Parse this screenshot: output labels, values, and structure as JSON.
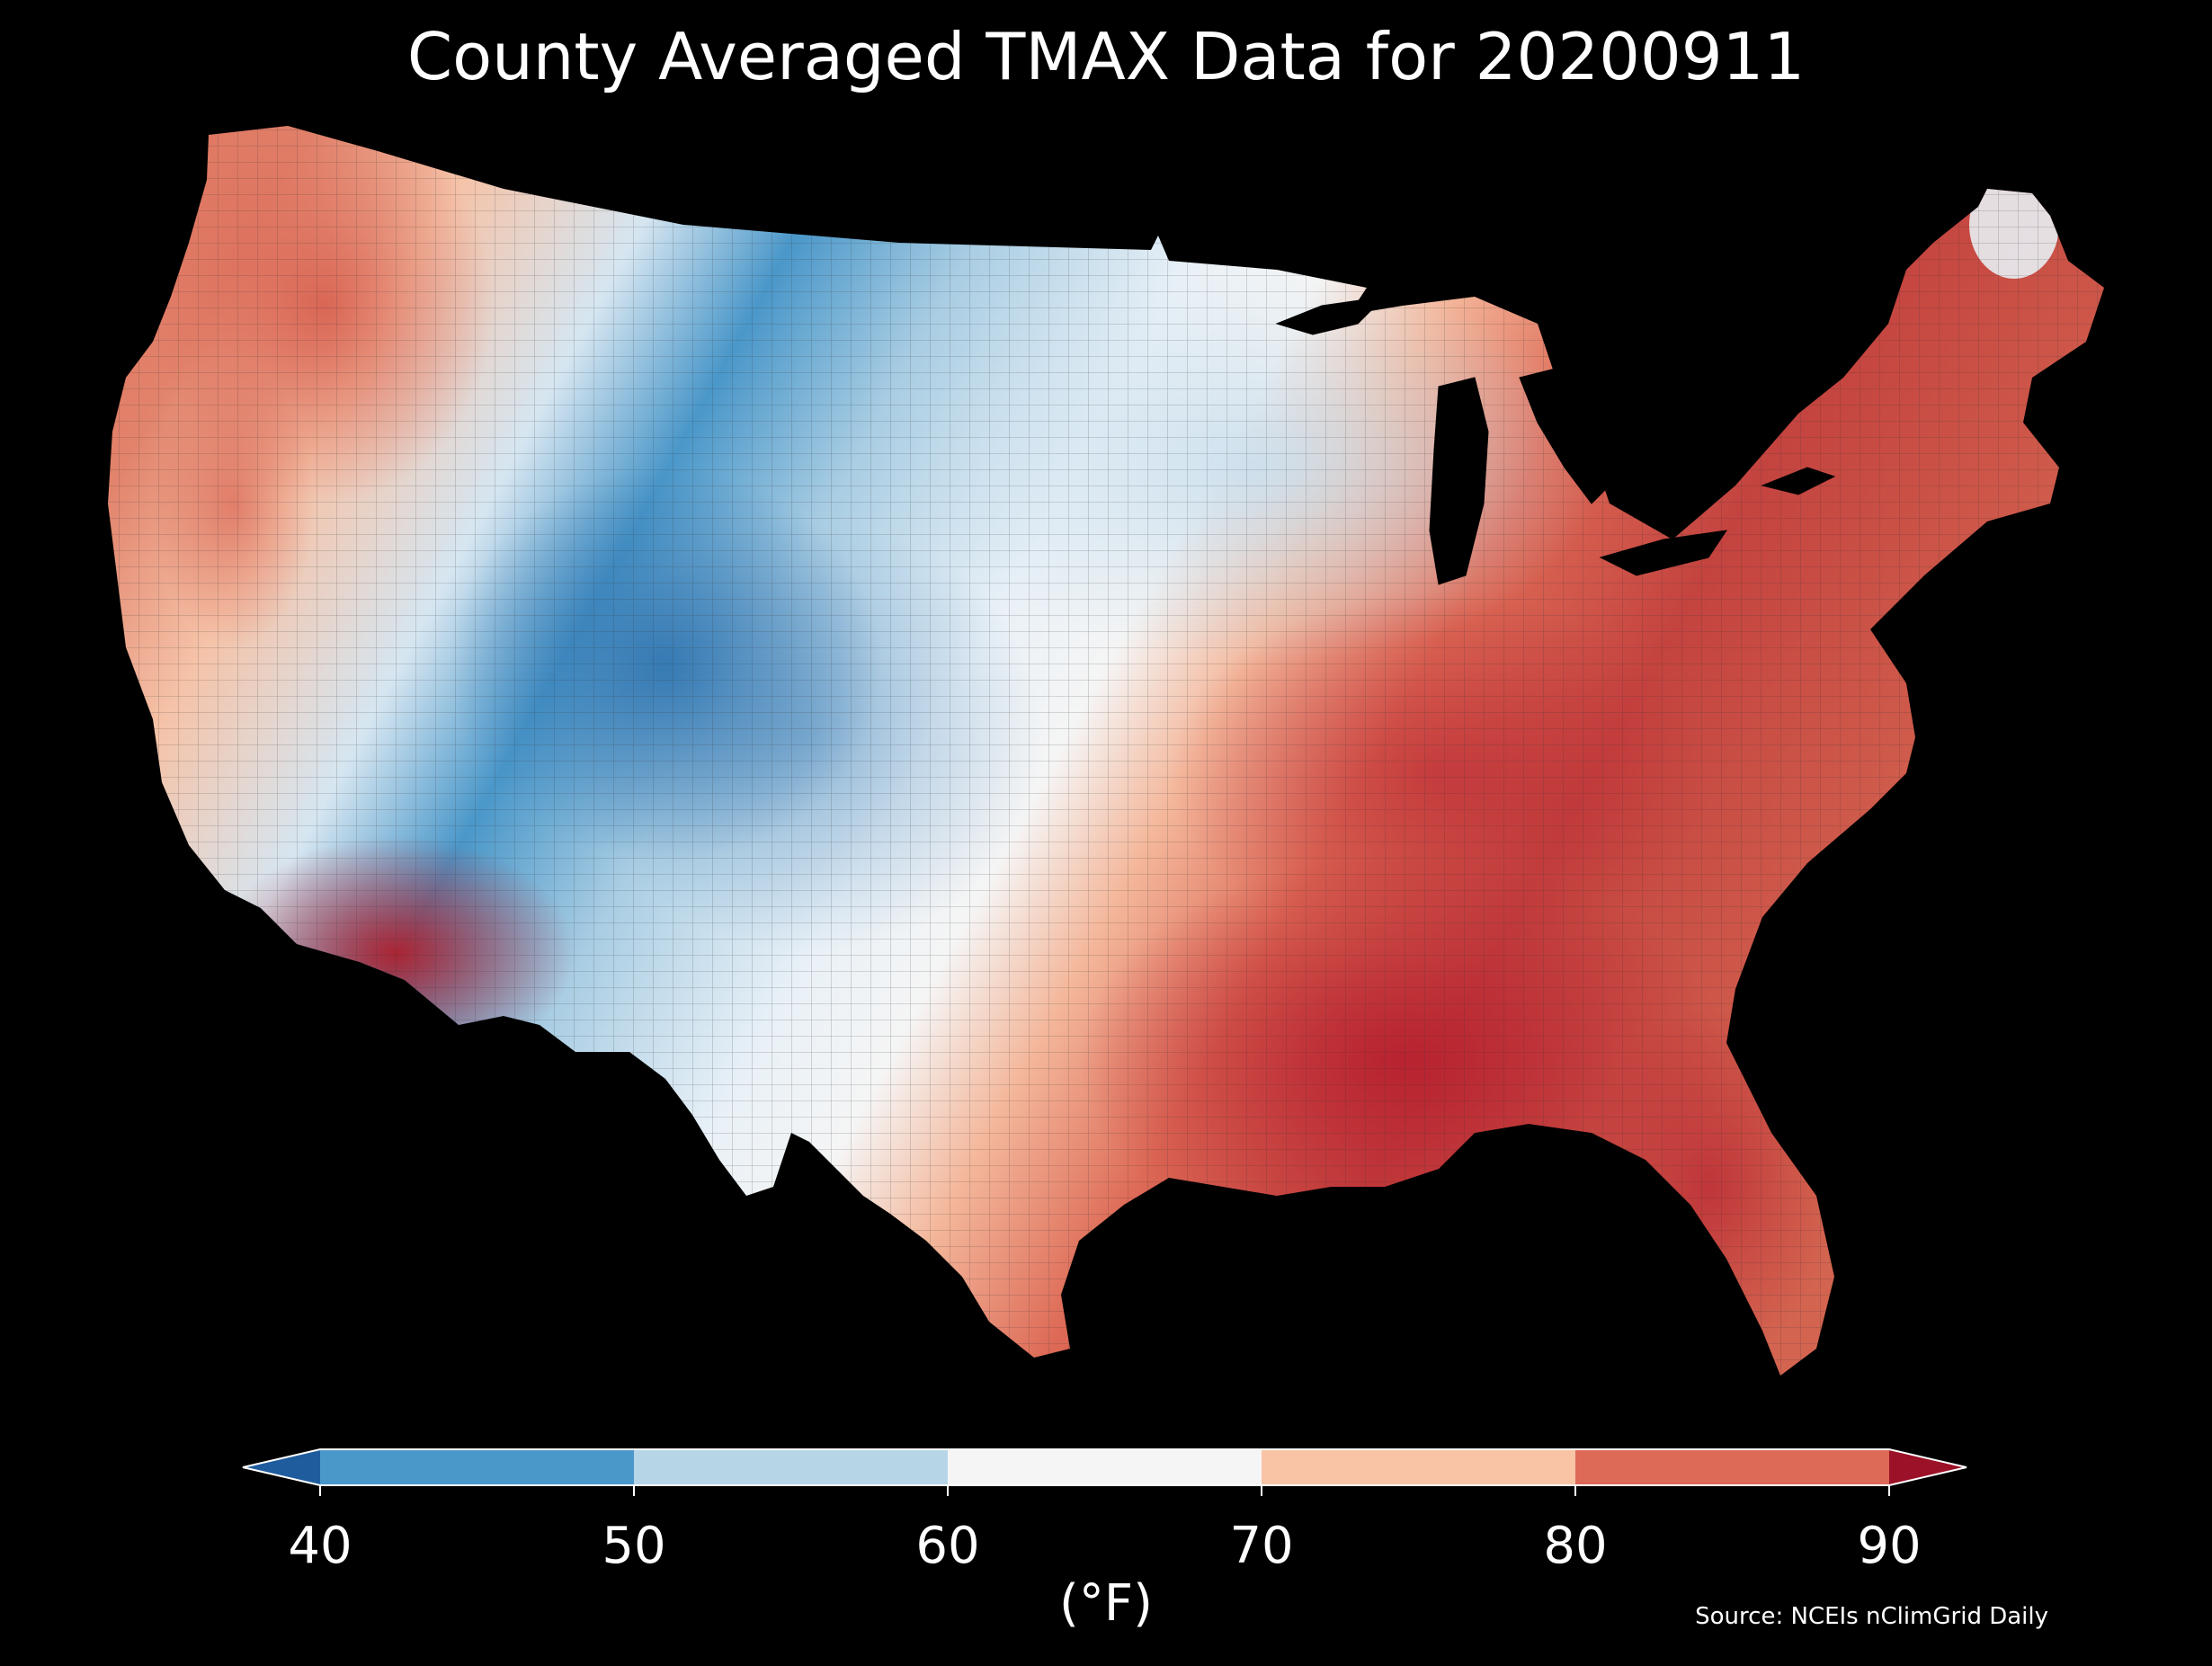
{
  "title": "County Averaged TMAX Data for 20200911",
  "source": "Source: NCEIs nClimGrid Daily",
  "colorbar": {
    "unit": "(°F)",
    "ticks": [
      "40",
      "50",
      "60",
      "70",
      "80",
      "90"
    ],
    "bins": [
      {
        "range": "<40",
        "color": "#1f5c9e"
      },
      {
        "range": "40-50",
        "color": "#4a97c9"
      },
      {
        "range": "50-60",
        "color": "#b6d6e8"
      },
      {
        "range": "60-70",
        "color": "#f5f5f5"
      },
      {
        "range": "70-80",
        "color": "#f9c3a6"
      },
      {
        "range": "80-90",
        "color": "#dd6a56"
      },
      {
        "range": ">90",
        "color": "#9b1127"
      }
    ]
  }
}
